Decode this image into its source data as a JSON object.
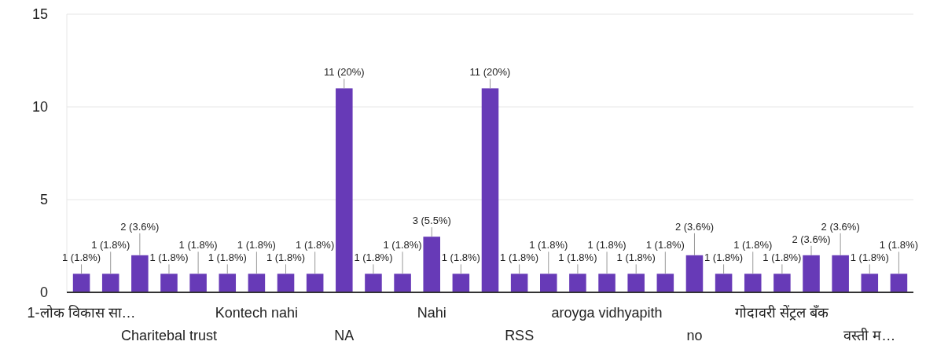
{
  "chart_data": {
    "type": "bar",
    "categories": [
      "1-लोक विकास सा…",
      null,
      null,
      "Charitebal trust",
      null,
      null,
      "Kontech nahi",
      null,
      null,
      "NA",
      null,
      null,
      "Nahi",
      null,
      null,
      "RSS",
      null,
      null,
      "aroyga vidhyapith",
      null,
      null,
      "no",
      null,
      null,
      "गोदावरी सेंट्रल बँक",
      null,
      null,
      "वस्ती म…",
      null
    ],
    "values": [
      1,
      1,
      2,
      1,
      1,
      1,
      1,
      1,
      1,
      11,
      1,
      1,
      3,
      1,
      11,
      1,
      1,
      1,
      1,
      1,
      1,
      2,
      1,
      1,
      1,
      2,
      2,
      1,
      1
    ],
    "value_labels": [
      "1 (1.8%)",
      "1 (1.8%)",
      "2 (3.6%)",
      "1 (1.8%)",
      "1 (1.8%)",
      "1 (1.8%)",
      "1 (1.8%)",
      "1 (1.8%)",
      "1 (1.8%)",
      "11 (20%)",
      "1 (1.8%)",
      "1 (1.8%)",
      "3 (5.5%)",
      "1 (1.8%)",
      "11 (20%)",
      "1 (1.8%)",
      "1 (1.8%)",
      "1 (1.8%)",
      "1 (1.8%)",
      "1 (1.8%)",
      "1 (1.8%)",
      "2 (3.6%)",
      "1 (1.8%)",
      "1 (1.8%)",
      "1 (1.8%)",
      "2 (3.6%)",
      "2 (3.6%)",
      "1 (1.8%)",
      "1 (1.8%)"
    ],
    "color": "#673ab7",
    "ylim": [
      0,
      15
    ],
    "yticks": [
      0,
      5,
      10,
      15
    ],
    "grid": "y"
  }
}
